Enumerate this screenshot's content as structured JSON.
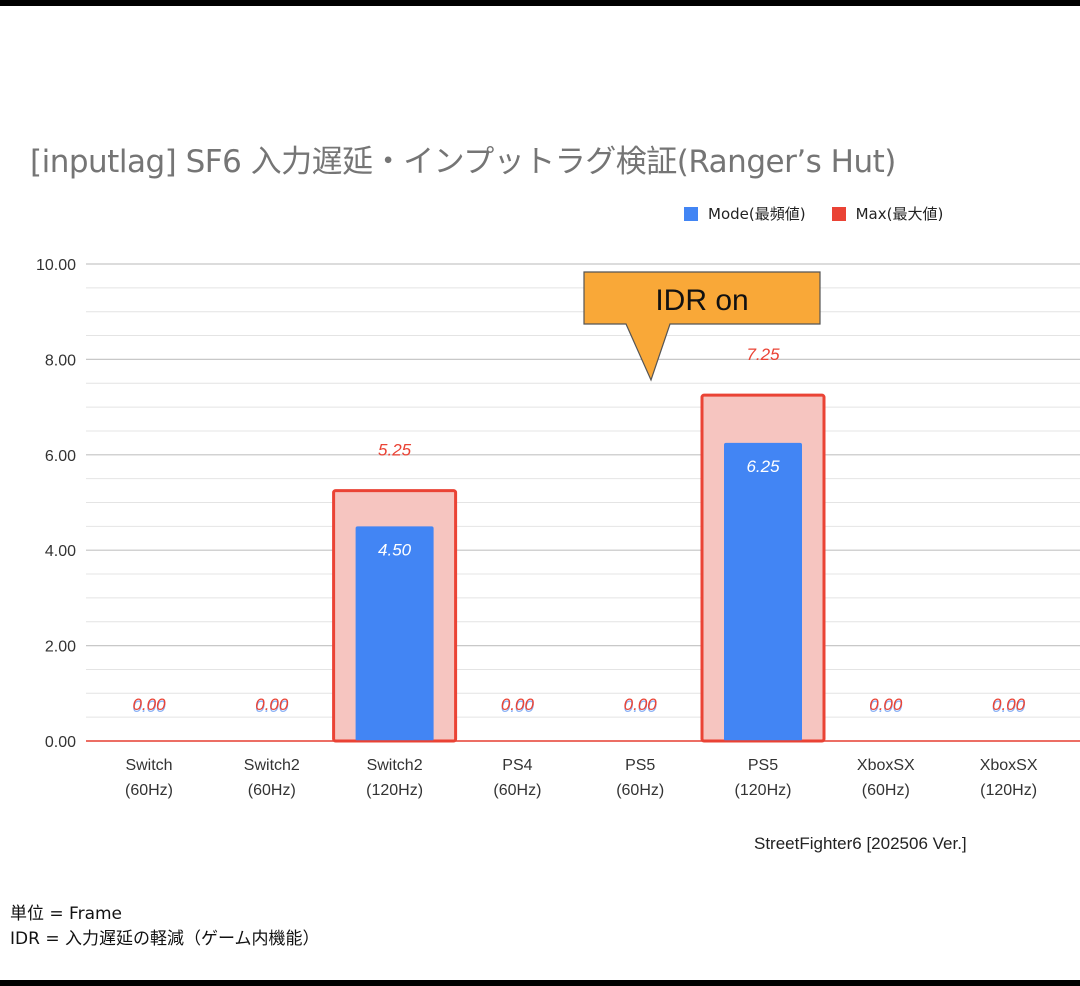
{
  "chart_data": {
    "type": "bar",
    "title": "[inputlag] SF6 入力遅延・インプットラグ検証(Ranger’s Hut)",
    "categories": [
      [
        "Switch",
        "(60Hz)"
      ],
      [
        "Switch2",
        "(60Hz)"
      ],
      [
        "Switch2",
        "(120Hz)"
      ],
      [
        "PS4",
        "(60Hz)"
      ],
      [
        "PS5",
        "(60Hz)"
      ],
      [
        "PS5",
        "(120Hz)"
      ],
      [
        "XboxSX",
        "(60Hz)"
      ],
      [
        "XboxSX",
        "(120Hz)"
      ]
    ],
    "series": [
      {
        "name": "Mode(最頻値)",
        "color": "#4285F4",
        "values": [
          0.0,
          0.0,
          4.5,
          0.0,
          0.0,
          6.25,
          0.0,
          0.0
        ]
      },
      {
        "name": "Max(最大値)",
        "color": "#EA4335",
        "values": [
          0.0,
          0.0,
          5.25,
          0.0,
          0.0,
          7.25,
          0.0,
          0.0
        ]
      }
    ],
    "yticks": [
      "0.00",
      "2.00",
      "4.00",
      "6.00",
      "8.00",
      "10.00"
    ],
    "ylim": [
      0,
      10
    ],
    "grid": true,
    "legend_position": "top-right",
    "annotation": {
      "text": "IDR on",
      "color": "#F9A838",
      "points_to_category_index": 4
    },
    "source_label": "StreetFighter6 [202506 Ver.]"
  },
  "notes": [
    "単位 = Frame",
    "IDR = 入力遅延の軽減（ゲーム内機能）"
  ]
}
